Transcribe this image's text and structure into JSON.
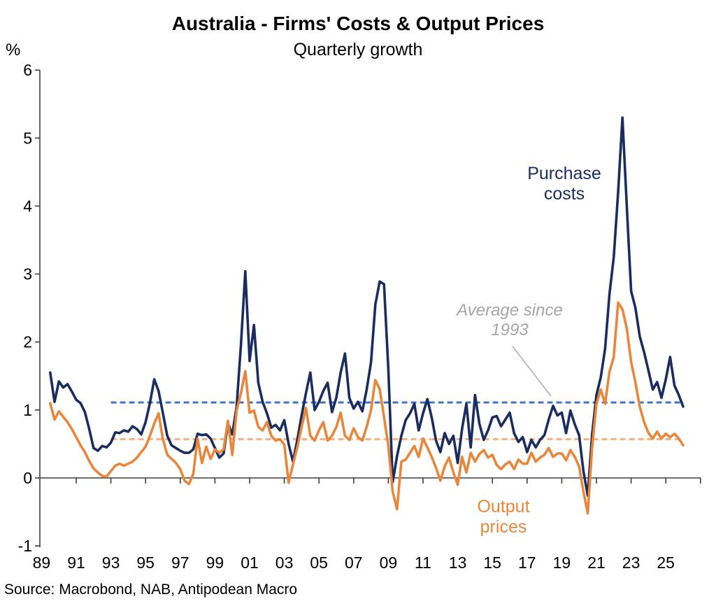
{
  "chart_data": {
    "type": "line",
    "title": "Australia - Firms' Costs & Output Prices",
    "subtitle": "Quarterly growth",
    "ylabel": "%",
    "xlabel": "",
    "ylim": [
      -1,
      6
    ],
    "grid": false,
    "legend_position": "annotations-on-chart",
    "x_start": 1989.5,
    "x_step": 0.25,
    "x_end": 2026.0,
    "y_axis": {
      "ticks": [
        6,
        5,
        4,
        3,
        2,
        1,
        0,
        -1
      ]
    },
    "x_axis": {
      "tick_years": [
        1989,
        1991,
        1993,
        1995,
        1997,
        1999,
        2001,
        2003,
        2005,
        2007,
        2009,
        2011,
        2013,
        2015,
        2017,
        2019,
        2021,
        2023,
        2025
      ],
      "tick_labels": [
        "89",
        "91",
        "93",
        "95",
        "97",
        "99",
        "01",
        "03",
        "05",
        "07",
        "09",
        "11",
        "13",
        "15",
        "17",
        "19",
        "21",
        "23",
        "25"
      ],
      "tick_mark_years": [
        1991,
        1993,
        1995,
        1997,
        1999,
        2001,
        2003,
        2005,
        2007,
        2009,
        2011,
        2013,
        2015,
        2017,
        2019,
        2021,
        2023,
        2025,
        2027
      ]
    },
    "series": [
      {
        "name": "Purchase costs",
        "color": "#1b2d5e",
        "values": [
          1.55,
          1.12,
          1.42,
          1.33,
          1.38,
          1.27,
          1.15,
          1.1,
          0.97,
          0.72,
          0.44,
          0.4,
          0.47,
          0.45,
          0.52,
          0.67,
          0.66,
          0.7,
          0.68,
          0.76,
          0.72,
          0.64,
          0.82,
          1.1,
          1.45,
          1.28,
          0.95,
          0.62,
          0.48,
          0.44,
          0.4,
          0.37,
          0.37,
          0.42,
          0.65,
          0.63,
          0.64,
          0.58,
          0.44,
          0.3,
          0.36,
          0.8,
          0.64,
          1.05,
          1.96,
          3.04,
          1.72,
          2.25,
          1.4,
          1.12,
          0.95,
          0.74,
          0.78,
          0.7,
          0.85,
          0.5,
          0.24,
          0.56,
          0.92,
          1.25,
          1.55,
          1.0,
          1.12,
          1.28,
          1.4,
          0.97,
          1.18,
          1.55,
          1.83,
          1.18,
          1.02,
          1.12,
          0.98,
          1.3,
          1.7,
          2.55,
          2.89,
          2.85,
          1.6,
          -0.06,
          0.32,
          0.62,
          0.85,
          0.95,
          1.09,
          0.7,
          0.95,
          1.16,
          0.89,
          0.55,
          0.38,
          0.66,
          0.5,
          0.62,
          0.22,
          0.72,
          1.09,
          0.45,
          1.22,
          0.8,
          0.56,
          0.7,
          0.89,
          0.91,
          0.76,
          0.86,
          0.96,
          0.66,
          0.53,
          0.6,
          0.38,
          0.56,
          0.45,
          0.56,
          0.63,
          0.86,
          1.06,
          0.92,
          0.96,
          0.66,
          0.99,
          0.79,
          0.63,
          0.1,
          -0.26,
          0.64,
          1.22,
          1.48,
          1.9,
          2.7,
          3.25,
          4.2,
          5.3,
          4.0,
          2.75,
          2.5,
          2.08,
          1.85,
          1.58,
          1.3,
          1.41,
          1.18,
          1.45,
          1.78,
          1.36,
          1.22,
          1.05
        ]
      },
      {
        "name": "Output prices",
        "color": "#e8873b",
        "values": [
          1.1,
          0.86,
          0.98,
          0.9,
          0.82,
          0.72,
          0.6,
          0.48,
          0.38,
          0.25,
          0.14,
          0.08,
          0.03,
          0.02,
          0.1,
          0.18,
          0.21,
          0.18,
          0.21,
          0.24,
          0.3,
          0.38,
          0.46,
          0.62,
          0.8,
          0.95,
          0.57,
          0.34,
          0.28,
          0.22,
          0.13,
          -0.04,
          -0.09,
          0.06,
          0.58,
          0.22,
          0.46,
          0.28,
          0.42,
          0.37,
          0.42,
          0.84,
          0.34,
          0.99,
          1.25,
          1.57,
          0.96,
          0.99,
          0.75,
          0.7,
          0.82,
          0.62,
          0.55,
          0.57,
          0.49,
          -0.07,
          0.2,
          0.45,
          0.75,
          1.03,
          0.62,
          0.55,
          0.7,
          0.82,
          0.55,
          0.62,
          0.75,
          0.96,
          0.62,
          0.56,
          0.73,
          0.6,
          0.55,
          0.75,
          1.0,
          1.44,
          1.31,
          0.9,
          0.47,
          -0.2,
          -0.46,
          0.24,
          0.27,
          0.37,
          0.47,
          0.31,
          0.58,
          0.45,
          0.31,
          0.15,
          -0.04,
          0.17,
          0.3,
          0.08,
          -0.1,
          0.31,
          0.08,
          0.37,
          0.24,
          0.35,
          0.41,
          0.3,
          0.34,
          0.19,
          0.13,
          0.2,
          0.24,
          0.13,
          0.27,
          0.21,
          0.21,
          0.37,
          0.24,
          0.3,
          0.34,
          0.44,
          0.31,
          0.36,
          0.36,
          0.26,
          0.41,
          0.31,
          0.17,
          -0.2,
          -0.52,
          0.44,
          1.09,
          1.3,
          1.09,
          1.56,
          1.78,
          2.58,
          2.48,
          2.2,
          1.71,
          1.4,
          1.05,
          0.82,
          0.66,
          0.58,
          0.68,
          0.58,
          0.65,
          0.6,
          0.65,
          0.58,
          0.48
        ]
      }
    ],
    "averages": [
      {
        "series": "Purchase costs",
        "value": 1.11,
        "color": "#4472c4",
        "from_year": 1993
      },
      {
        "series": "Output prices",
        "value": 0.57,
        "color": "#f4b183",
        "from_year": 1993
      }
    ],
    "annotations": {
      "purchase_costs": "Purchase costs",
      "average": "Average since 1993",
      "output_prices": "Output prices"
    },
    "source": "Source: Macrobond, NAB, Antipodean Macro"
  }
}
